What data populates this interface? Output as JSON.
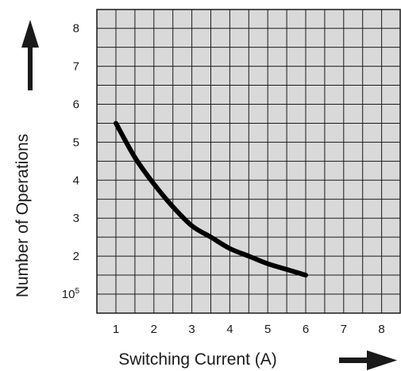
{
  "chart_data": {
    "type": "line",
    "title": "",
    "xlabel": "Switching Current (A)",
    "ylabel": "Number of Operations",
    "xlim": [
      0.5,
      8.5
    ],
    "ylim": [
      0.5,
      8.5
    ],
    "x_ticks": [
      "1",
      "2",
      "3",
      "4",
      "5",
      "6",
      "7",
      "8"
    ],
    "y_ticks": [
      {
        "base": "10",
        "sup": "5"
      },
      {
        "base": "2",
        "sup": ""
      },
      {
        "base": "3",
        "sup": ""
      },
      {
        "base": "4",
        "sup": ""
      },
      {
        "base": "5",
        "sup": ""
      },
      {
        "base": "6",
        "sup": ""
      },
      {
        "base": "7",
        "sup": ""
      },
      {
        "base": "8",
        "sup": ""
      }
    ],
    "grid": true,
    "plot_background": "#d9d9d9",
    "grid_color": "#1a1a1a",
    "line_color": "#000000",
    "series": [
      {
        "x": [
          1.0,
          1.5,
          2.0,
          2.5,
          3.0,
          3.5,
          4.0,
          4.5,
          5.0,
          5.5,
          6.0
        ],
        "y": [
          5.5,
          4.6,
          3.9,
          3.3,
          2.8,
          2.5,
          2.2,
          2.0,
          1.8,
          1.65,
          1.5
        ]
      }
    ]
  }
}
